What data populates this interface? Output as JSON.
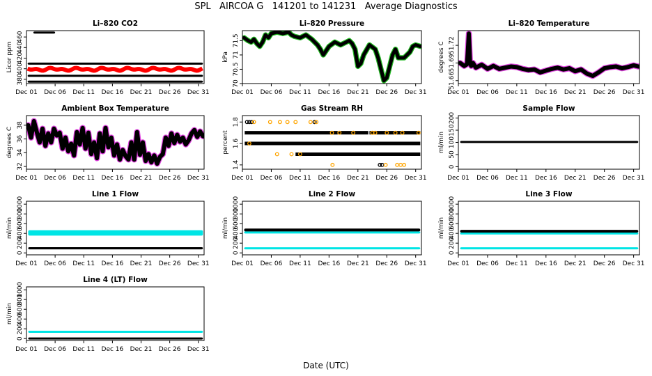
{
  "page_title": "SPL   AIRCOA G   141201 to 141231   Average Diagnostics",
  "x_axis_label": "Date (UTC)",
  "x_ticks": [
    "Dec 01",
    "Dec 06",
    "Dec 11",
    "Dec 16",
    "Dec 21",
    "Dec 26",
    "Dec 31"
  ],
  "x_tick_days": [
    1,
    6,
    11,
    16,
    21,
    26,
    31
  ],
  "colors": {
    "black": "#000000",
    "red": "#ff0000",
    "magenta": "#e040e0",
    "green": "#22bb22",
    "cyan": "#00e5e5",
    "orange": "#ffa500"
  },
  "chart_data": [
    {
      "id": "co2",
      "title": "Li–820 CO2",
      "type": "scatter",
      "ylabel": "Licor ppm",
      "yticks": [
        380,
        400,
        420,
        440,
        460
      ],
      "ylim": [
        372,
        472
      ],
      "xlim": [
        1,
        32
      ],
      "series": [
        {
          "name": "high",
          "color": "black",
          "kind": "band",
          "x": [
            2.2,
            6.0
          ],
          "y": 470,
          "h": 0.8
        },
        {
          "name": "ref-top",
          "color": "black",
          "kind": "band",
          "x": [
            1.2,
            31.8
          ],
          "y": 411,
          "h": 1.2
        },
        {
          "name": "sample",
          "color": "red",
          "kind": "wave",
          "x": [
            1.2,
            31.8
          ],
          "y": 399,
          "amp": 3,
          "thick": 3
        },
        {
          "name": "ref-mid",
          "color": "black",
          "kind": "band",
          "x": [
            1.2,
            31.8
          ],
          "y": 388,
          "h": 1.2
        },
        {
          "name": "ref-low",
          "color": "black",
          "kind": "band",
          "x": [
            1.2,
            31.8
          ],
          "y": 377,
          "h": 1.2
        }
      ]
    },
    {
      "id": "pressure",
      "title": "Li–820 Pressure",
      "type": "line",
      "ylabel": "kPa",
      "yticks": [
        70.0,
        70.5,
        71.0,
        71.5
      ],
      "ylim": [
        70.0,
        71.85
      ],
      "xlim": [
        1,
        32
      ],
      "series": [
        {
          "name": "pressure",
          "color": "black",
          "halo": "green",
          "thick": 5,
          "x": [
            1.3,
            2,
            2.5,
            3,
            3.5,
            4,
            4.5,
            5,
            5.5,
            6,
            7,
            8,
            9,
            9.5,
            10,
            11,
            12,
            13,
            14,
            14.5,
            15,
            16,
            17,
            18,
            19,
            19.5,
            20,
            20.5,
            21,
            21.5,
            22,
            23,
            24,
            24.5,
            25,
            25.5,
            26,
            26.5,
            27,
            27.5,
            28,
            29,
            30,
            30.5,
            31,
            31.8
          ],
          "y": [
            71.6,
            71.5,
            71.45,
            71.55,
            71.4,
            71.3,
            71.45,
            71.7,
            71.6,
            71.75,
            71.8,
            71.75,
            71.8,
            71.7,
            71.65,
            71.6,
            71.7,
            71.55,
            71.35,
            71.2,
            71.0,
            71.3,
            71.45,
            71.35,
            71.45,
            71.5,
            71.4,
            71.2,
            70.6,
            70.7,
            71.0,
            71.35,
            71.2,
            70.9,
            70.5,
            70.1,
            70.2,
            70.6,
            71.0,
            71.2,
            70.9,
            70.9,
            71.1,
            71.3,
            71.35,
            71.3
          ]
        }
      ]
    },
    {
      "id": "licor-temp",
      "title": "Li–820 Temperature",
      "type": "line",
      "ylabel": "degrees C",
      "yticks": [
        51.66,
        51.69,
        51.72
      ],
      "ylim": [
        51.655,
        51.745
      ],
      "xlim": [
        1,
        32
      ],
      "series": [
        {
          "name": "temperature",
          "color": "black",
          "halo": "magenta",
          "thick": 6,
          "x": [
            1.3,
            2,
            2.5,
            2.8,
            3.0,
            3.2,
            3.5,
            4,
            5,
            6,
            7,
            8,
            9,
            10,
            11,
            12,
            13,
            14,
            15,
            16,
            17,
            18,
            19,
            20,
            21,
            22,
            23,
            24,
            25,
            26,
            27,
            28,
            29,
            30,
            31,
            31.8
          ],
          "y": [
            51.69,
            51.685,
            51.688,
            51.74,
            51.69,
            51.685,
            51.69,
            51.682,
            51.687,
            51.68,
            51.685,
            51.68,
            51.682,
            51.684,
            51.683,
            51.68,
            51.678,
            51.679,
            51.674,
            51.677,
            51.68,
            51.682,
            51.679,
            51.681,
            51.676,
            51.679,
            51.672,
            51.668,
            51.674,
            51.681,
            51.683,
            51.684,
            51.681,
            51.683,
            51.686,
            51.684
          ]
        }
      ]
    },
    {
      "id": "ambient-temp",
      "title": "Ambient Box Temperature",
      "type": "line",
      "ylabel": "degrees C",
      "yticks": [
        32,
        34,
        36,
        38
      ],
      "ylim": [
        31.6,
        39.4
      ],
      "xlim": [
        1,
        32
      ],
      "series": [
        {
          "name": "ambient",
          "color": "black",
          "halo": "magenta",
          "thick": 6,
          "x": [
            1.3,
            1.8,
            2.3,
            2.8,
            3.3,
            3.8,
            4.3,
            4.8,
            5.3,
            5.8,
            6.3,
            6.8,
            7.3,
            7.8,
            8.3,
            8.8,
            9.3,
            9.8,
            10.3,
            10.8,
            11.3,
            11.8,
            12.3,
            12.8,
            13.3,
            13.8,
            14.3,
            14.8,
            15.3,
            15.8,
            16.3,
            16.8,
            17.3,
            17.8,
            18.3,
            18.8,
            19.3,
            19.8,
            20.3,
            20.8,
            21.3,
            21.8,
            22.3,
            22.8,
            23.3,
            23.8,
            24.3,
            24.8,
            25.3,
            25.8,
            26.3,
            26.8,
            27.3,
            27.8,
            28.3,
            28.8,
            29.3,
            29.8,
            30.3,
            30.8,
            31.3,
            31.8
          ],
          "y": [
            38,
            36.2,
            38.6,
            37,
            35.5,
            37.5,
            35,
            36.8,
            35.5,
            37.5,
            36.5,
            36.9,
            34.6,
            36.2,
            34.2,
            35.3,
            33.6,
            37,
            35.2,
            37.6,
            34.6,
            36.9,
            33.8,
            35.5,
            33.2,
            36.8,
            34.2,
            37.6,
            34.8,
            36.2,
            33.6,
            35.2,
            33,
            34.4,
            33.5,
            33,
            35.5,
            33,
            37,
            33.7,
            35.5,
            32.8,
            33.8,
            32.6,
            33.6,
            32.4,
            33.4,
            33.8,
            36.2,
            35,
            36.8,
            35.4,
            36.6,
            35.6,
            36.2,
            35.2,
            35.8,
            36.8,
            37.3,
            36.3,
            37.1,
            36.4
          ]
        }
      ]
    },
    {
      "id": "rh",
      "title": "Gas Stream RH",
      "type": "scatter",
      "ylabel": "percent",
      "yticks": [
        1.4,
        1.6,
        1.8
      ],
      "ylim": [
        1.36,
        1.86
      ],
      "xlim": [
        1,
        32
      ],
      "series": [
        {
          "name": "level-1.7",
          "color": "black",
          "kind": "hband",
          "x": [
            1.4,
            31.8
          ],
          "y": 1.7,
          "gaps": [
            [
              17.5,
              17.6
            ],
            [
              22.8,
              23.0
            ]
          ]
        },
        {
          "name": "level-1.6",
          "color": "black",
          "kind": "hband",
          "x": [
            1.4,
            31.8
          ],
          "y": 1.6
        },
        {
          "name": "level-1.5",
          "color": "black",
          "kind": "hband",
          "x": [
            10.2,
            31.8
          ],
          "y": 1.5
        },
        {
          "name": "level-1.8",
          "color": "black",
          "kind": "pts",
          "x": [
            1.8,
            2.2,
            2.6,
            13.5
          ],
          "y": 1.8
        },
        {
          "name": "level-1.4",
          "color": "black",
          "kind": "pts",
          "x": [
            24.8,
            25.2
          ],
          "y": 1.4
        },
        {
          "name": "outliers",
          "color": "orange",
          "kind": "pts",
          "x": [
            3,
            5.8,
            7.5,
            8.8,
            10.2,
            12.8,
            13.8,
            2.2,
            7,
            9.5,
            11,
            16.5,
            17.8,
            20.2,
            23.5,
            24,
            26,
            27.5,
            28.7,
            31.5,
            16.6,
            25.8,
            27.8,
            28.4,
            29
          ],
          "y": [
            1.8,
            1.8,
            1.8,
            1.8,
            1.8,
            1.8,
            1.8,
            1.6,
            1.5,
            1.5,
            1.5,
            1.7,
            1.7,
            1.7,
            1.7,
            1.7,
            1.7,
            1.7,
            1.7,
            1.7,
            1.4,
            1.4,
            1.4,
            1.4,
            1.4
          ]
        }
      ]
    },
    {
      "id": "sample-flow",
      "title": "Sample Flow",
      "type": "scatter",
      "ylabel": "ml/min",
      "yticks": [
        0,
        50,
        100,
        150,
        200
      ],
      "ylim": [
        -10,
        210
      ],
      "xlim": [
        1,
        32
      ],
      "series": [
        {
          "name": "flow",
          "color": "black",
          "kind": "band",
          "x": [
            1.3,
            31.8
          ],
          "y": 103,
          "h": 6
        }
      ]
    },
    {
      "id": "line1",
      "title": "Line 1 Flow",
      "type": "scatter",
      "ylabel": "ml/min",
      "yticks": [
        0,
        200,
        400,
        600,
        800,
        1000
      ],
      "ylim": [
        -40,
        1060
      ],
      "xlim": [
        1,
        32
      ],
      "series": [
        {
          "name": "cyan",
          "color": "cyan",
          "kind": "band",
          "x": [
            1.3,
            31.8
          ],
          "y": 410,
          "h": 110
        },
        {
          "name": "black",
          "color": "black",
          "kind": "band",
          "x": [
            1.3,
            31.8
          ],
          "y": 95,
          "h": 45
        }
      ]
    },
    {
      "id": "line2",
      "title": "Line 2 Flow",
      "type": "scatter",
      "ylabel": "ml/min",
      "yticks": [
        0,
        200,
        400,
        600,
        800,
        1000
      ],
      "ylim": [
        -40,
        1060
      ],
      "xlim": [
        1,
        32
      ],
      "series": [
        {
          "name": "cyan-high",
          "color": "cyan",
          "kind": "band",
          "x": [
            1.3,
            31.8
          ],
          "y": 420,
          "h": 45
        },
        {
          "name": "black",
          "color": "black",
          "kind": "band",
          "x": [
            1.3,
            31.8
          ],
          "y": 470,
          "h": 60
        },
        {
          "name": "cyan-low",
          "color": "cyan",
          "kind": "band",
          "x": [
            1.3,
            31.8
          ],
          "y": 95,
          "h": 40
        }
      ]
    },
    {
      "id": "line3",
      "title": "Line 3 Flow",
      "type": "scatter",
      "ylabel": "ml/min",
      "yticks": [
        0,
        200,
        400,
        600,
        800,
        1000
      ],
      "ylim": [
        -40,
        1060
      ],
      "xlim": [
        1,
        32
      ],
      "series": [
        {
          "name": "cyan-high",
          "color": "cyan",
          "kind": "band",
          "x": [
            1.3,
            31.8
          ],
          "y": 400,
          "h": 45
        },
        {
          "name": "black",
          "color": "black",
          "kind": "band",
          "x": [
            1.3,
            31.8
          ],
          "y": 445,
          "h": 55
        },
        {
          "name": "cyan-low",
          "color": "cyan",
          "kind": "band",
          "x": [
            1.3,
            31.8
          ],
          "y": 95,
          "h": 40
        }
      ]
    },
    {
      "id": "line4",
      "title": "Line 4 (LT) Flow",
      "type": "scatter",
      "ylabel": "ml/min",
      "yticks": [
        0,
        200,
        400,
        600,
        800,
        1000
      ],
      "ylim": [
        -40,
        1060
      ],
      "xlim": [
        1,
        32
      ],
      "series": [
        {
          "name": "cyan",
          "color": "cyan",
          "kind": "band",
          "x": [
            1.3,
            31.8
          ],
          "y": 140,
          "h": 40
        },
        {
          "name": "black",
          "color": "black",
          "kind": "band",
          "x": [
            1.3,
            31.8
          ],
          "y": 5,
          "h": 35
        }
      ]
    }
  ]
}
